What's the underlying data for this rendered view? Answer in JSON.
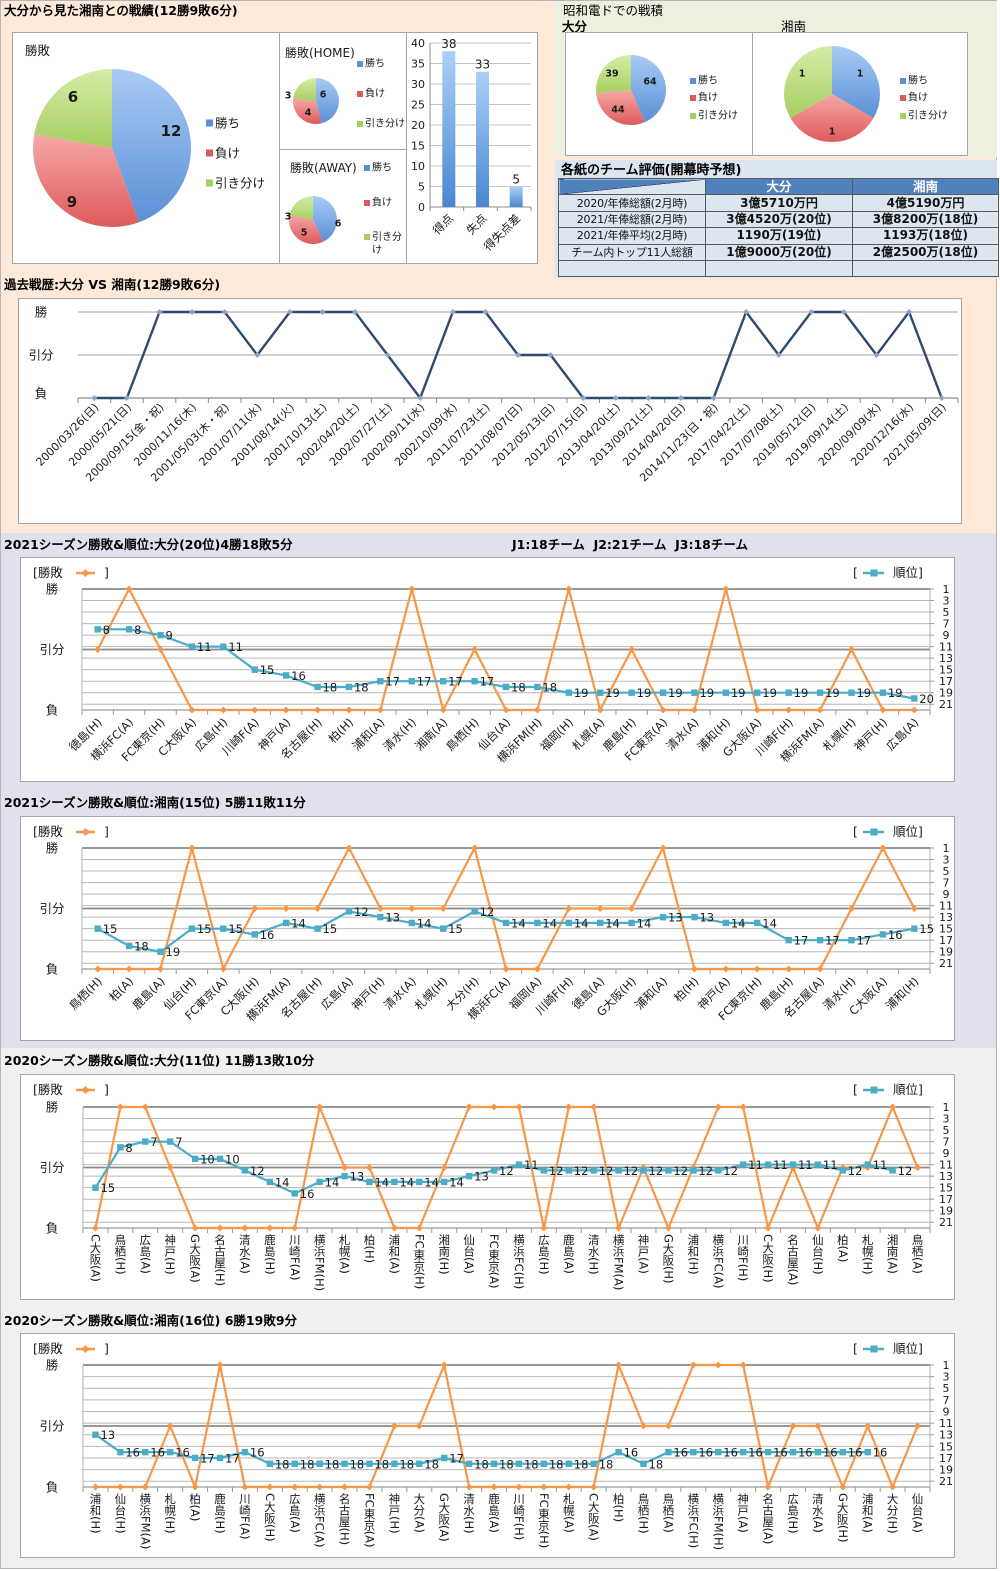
{
  "head_to_head": {
    "title": "大分から見た湘南との戦績(12勝9敗6分)"
  },
  "venue": {
    "title": "昭和電ドでの戦積"
  },
  "evaluation": {
    "title": "各紙のチーム評価(開幕時予想)",
    "header": [
      "",
      "大分",
      "湘南"
    ],
    "rows": [
      [
        "2020/年俸総額(2月時)",
        "3億5710万円",
        "4億5190万円"
      ],
      [
        "2021/年俸総額(2月時)",
        "3億4520万(20位)",
        "3億8200万(18位)"
      ],
      [
        "2021/年俸平均(2月時)",
        "1190万(19位)",
        "1193万(18位)"
      ],
      [
        "チーム内トップ11人総額",
        "1億9000万(20位)",
        "2億2500万(18位)"
      ],
      [
        "",
        "",
        ""
      ]
    ]
  },
  "league_note": "J1:18チーム  J2:21チーム  J3:18チーム",
  "colors": {
    "win": "#5b8fd6",
    "win_light": "#a9cbf5",
    "loss": "#de5a5a",
    "loss_light": "#f6a8a7",
    "draw": "#a6cf62",
    "draw_light": "#d6eca6",
    "bar": "#4a86d2",
    "bar_light": "#acd0f6",
    "history_line": "#2e4a6e",
    "history_marker": "#8fa4c2",
    "result_line": "#f79646",
    "rank_line": "#4bacc6"
  },
  "chart_data": [
    {
      "type": "pie",
      "title": "勝敗",
      "categories": [
        "勝ち",
        "負け",
        "引き分け"
      ],
      "values": [
        12,
        9,
        6
      ]
    },
    {
      "type": "pie",
      "title": "勝敗(HOME)",
      "categories": [
        "勝ち",
        "負け",
        "引き分け"
      ],
      "values": [
        6,
        4,
        3
      ]
    },
    {
      "type": "pie",
      "title": "勝敗(AWAY)",
      "categories": [
        "勝ち",
        "負け",
        "引き分け"
      ],
      "values": [
        6,
        5,
        3
      ]
    },
    {
      "type": "bar",
      "title": "",
      "categories": [
        "得点",
        "失点",
        "得失点差"
      ],
      "values": [
        38,
        33,
        5
      ],
      "ylim": [
        0,
        40
      ],
      "yticks": [
        0,
        5,
        10,
        15,
        20,
        25,
        30,
        35,
        40
      ],
      "grid": true,
      "data_labels": true
    },
    {
      "type": "pie",
      "title": "大分",
      "categories": [
        "勝ち",
        "負け",
        "引き分け"
      ],
      "values": [
        64,
        44,
        39
      ]
    },
    {
      "type": "pie",
      "title": "湘南",
      "categories": [
        "勝ち",
        "負け",
        "引き分け"
      ],
      "values": [
        1,
        1,
        1
      ]
    },
    {
      "type": "line",
      "title": "過去戦歴:大分 VS 湘南(12勝9敗6分)",
      "categories": [
        "2000/03/26(日)",
        "2000/05/21(日)",
        "2000/09/15(金・祝)",
        "2000/11/16(木)",
        "2001/05/03(木・祝)",
        "2001/07/11(水)",
        "2001/08/14(火)",
        "2001/10/13(土)",
        "2002/04/20(土)",
        "2002/07/27(土)",
        "2002/09/11(水)",
        "2002/10/09(水)",
        "2011/07/23(土)",
        "2011/08/07(日)",
        "2012/05/13(日)",
        "2012/07/15(日)",
        "2013/04/20(土)",
        "2013/09/21(土)",
        "2014/04/20(日)",
        "2014/11/23(日・祝)",
        "2017/04/22(土)",
        "2017/07/08(土)",
        "2019/05/12(日)",
        "2019/09/14(土)",
        "2020/09/09(水)",
        "2020/12/16(水)",
        "2021/05/09(日)"
      ],
      "y_ticks": [
        "勝",
        "引分",
        "負"
      ],
      "values": [
        "負",
        "負",
        "勝",
        "勝",
        "勝",
        "引分",
        "勝",
        "勝",
        "勝",
        "引分",
        "負",
        "勝",
        "勝",
        "引分",
        "引分",
        "負",
        "負",
        "負",
        "負",
        "負",
        "勝",
        "引分",
        "勝",
        "勝",
        "引分",
        "勝",
        "負"
      ]
    },
    {
      "type": "line",
      "title": "2021シーズン勝敗&順位:大分(20位)4勝18敗5分",
      "categories": [
        "徳島(H)",
        "横浜FC(A)",
        "FC東京(H)",
        "C大阪(A)",
        "広島(H)",
        "川崎F(A)",
        "神戸(A)",
        "名古屋(H)",
        "柏(H)",
        "浦和(A)",
        "清水(H)",
        "湘南(A)",
        "鳥栖(H)",
        "仙台(A)",
        "横浜FM(H)",
        "福岡(H)",
        "札幌(A)",
        "鹿島(H)",
        "FC東京(A)",
        "清水(A)",
        "浦和(H)",
        "G大阪(A)",
        "川崎F(H)",
        "横浜FM(A)",
        "札幌(H)",
        "神戸(H)",
        "広島(A)"
      ],
      "series": [
        {
          "name": "勝敗",
          "axis": "left",
          "values": [
            "引分",
            "勝",
            "引分",
            "負",
            "負",
            "負",
            "負",
            "負",
            "負",
            "負",
            "勝",
            "負",
            "引分",
            "負",
            "負",
            "勝",
            "負",
            "引分",
            "負",
            "負",
            "勝",
            "負",
            "負",
            "負",
            "引分",
            "負",
            "負"
          ]
        },
        {
          "name": "順位",
          "axis": "right",
          "data_labels": true,
          "values": [
            8,
            8,
            9,
            11,
            11,
            15,
            16,
            18,
            18,
            17,
            17,
            17,
            17,
            18,
            18,
            19,
            19,
            19,
            19,
            19,
            19,
            19,
            19,
            19,
            19,
            19,
            20
          ]
        }
      ],
      "legend": {
        "left": [
          "[勝敗",
          "]"
        ],
        "right": [
          "[",
          "順位]"
        ]
      },
      "y_left_ticks": [
        "勝",
        "引分",
        "負"
      ],
      "y_right_ticks": [
        1,
        3,
        5,
        7,
        9,
        11,
        13,
        15,
        17,
        19,
        21
      ],
      "y_right_range": [
        1,
        22
      ]
    },
    {
      "type": "line",
      "title": "2021シーズン勝敗&順位:湘南(15位) 5勝11敗11分",
      "categories": [
        "鳥栖(H)",
        "柏(A)",
        "鹿島(A)",
        "仙台(H)",
        "FC東京(A)",
        "C大阪(H)",
        "横浜FM(A)",
        "名古屋(H)",
        "広島(A)",
        "神戸(H)",
        "清水(A)",
        "札幌(H)",
        "大分(H)",
        "横浜FC(A)",
        "福岡(A)",
        "川崎F(H)",
        "徳島(A)",
        "G大阪(H)",
        "浦和(A)",
        "柏(H)",
        "神戸(A)",
        "FC東京(H)",
        "鹿島(H)",
        "名古屋(A)",
        "清水(H)",
        "C大阪(A)",
        "浦和(H)"
      ],
      "series": [
        {
          "name": "勝敗",
          "axis": "left",
          "values": [
            "負",
            "負",
            "負",
            "勝",
            "負",
            "引分",
            "引分",
            "引分",
            "勝",
            "引分",
            "引分",
            "引分",
            "勝",
            "負",
            "負",
            "引分",
            "引分",
            "引分",
            "勝",
            "負",
            "負",
            "負",
            "負",
            "負",
            "引分",
            "勝",
            "引分"
          ]
        },
        {
          "name": "順位",
          "axis": "right",
          "data_labels": true,
          "values": [
            15,
            18,
            19,
            15,
            15,
            16,
            14,
            15,
            12,
            13,
            14,
            15,
            12,
            14,
            14,
            14,
            14,
            14,
            13,
            13,
            14,
            14,
            17,
            17,
            17,
            16,
            15
          ]
        }
      ],
      "legend": {
        "left": [
          "[勝敗",
          "]"
        ],
        "right": [
          "[",
          "順位]"
        ]
      },
      "y_left_ticks": [
        "勝",
        "引分",
        "負"
      ],
      "y_right_ticks": [
        1,
        3,
        5,
        7,
        9,
        11,
        13,
        15,
        17,
        19,
        21
      ],
      "y_right_range": [
        1,
        22
      ]
    },
    {
      "type": "line",
      "title": "2020シーズン勝敗&順位:大分(11位) 11勝13敗10分",
      "categories": [
        "C大阪(A)",
        "鳥栖(H)",
        "広島(A)",
        "神戸(H)",
        "G大阪(A)",
        "名古屋(H)",
        "清水(A)",
        "鹿島(H)",
        "川崎F(A)",
        "横浜FM(H)",
        "札幌(A)",
        "柏(H)",
        "浦和(A)",
        "FC東京(H)",
        "湘南(H)",
        "仙台(A)",
        "FC東京(A)",
        "横浜FC(H)",
        "広島(H)",
        "鹿島(A)",
        "清水(H)",
        "横浜FM(A)",
        "神戸(A)",
        "G大阪(H)",
        "浦和(H)",
        "横浜FC(A)",
        "川崎F(H)",
        "C大阪(H)",
        "名古屋(A)",
        "仙台(H)",
        "柏(A)",
        "札幌(H)",
        "湘南(A)",
        "鳥栖(A)"
      ],
      "series": [
        {
          "name": "勝敗",
          "axis": "left",
          "values": [
            "負",
            "勝",
            "勝",
            "引分",
            "負",
            "負",
            "負",
            "負",
            "負",
            "勝",
            "引分",
            "引分",
            "負",
            "負",
            "引分",
            "勝",
            "勝",
            "勝",
            "負",
            "勝",
            "勝",
            "負",
            "引分",
            "負",
            "引分",
            "勝",
            "勝",
            "負",
            "引分",
            "負",
            "引分",
            "引分",
            "勝",
            "引分"
          ]
        },
        {
          "name": "順位",
          "axis": "right",
          "data_labels": true,
          "values": [
            15,
            8,
            7,
            7,
            10,
            10,
            12,
            14,
            16,
            14,
            13,
            14,
            14,
            14,
            14,
            13,
            12,
            11,
            12,
            12,
            12,
            12,
            12,
            12,
            12,
            12,
            11,
            11,
            11,
            11,
            12,
            11,
            12,
            null
          ]
        }
      ],
      "legend": {
        "left": [
          "[勝敗",
          "]"
        ],
        "right": [
          "[",
          "順位]"
        ]
      },
      "y_left_ticks": [
        "勝",
        "引分",
        "負"
      ],
      "y_right_ticks": [
        1,
        3,
        5,
        7,
        9,
        11,
        13,
        15,
        17,
        19,
        21
      ],
      "y_right_range": [
        1,
        22
      ]
    },
    {
      "type": "line",
      "title": "2020シーズン勝敗&順位:湘南(16位) 6勝19敗9分",
      "categories": [
        "浦和(H)",
        "仙台(H)",
        "横浜FM(A)",
        "札幌(H)",
        "柏(A)",
        "鹿島(H)",
        "川崎F(A)",
        "C大阪(H)",
        "広島(A)",
        "横浜FC(A)",
        "名古屋(H)",
        "FC東京(A)",
        "神戸(H)",
        "大分(A)",
        "G大阪(A)",
        "清水(H)",
        "鹿島(A)",
        "川崎F(H)",
        "FC東京(H)",
        "札幌(A)",
        "C大阪(A)",
        "柏(H)",
        "鳥栖(H)",
        "鳥栖(A)",
        "横浜FC(H)",
        "横浜FM(H)",
        "神戸(A)",
        "名古屋(A)",
        "広島(H)",
        "清水(A)",
        "G大阪(H)",
        "浦和(A)",
        "大分(H)",
        "仙台(A)"
      ],
      "series": [
        {
          "name": "勝敗",
          "axis": "left",
          "values": [
            "負",
            "負",
            "負",
            "引分",
            "負",
            "勝",
            "負",
            "負",
            "負",
            "負",
            "負",
            "負",
            "引分",
            "引分",
            "勝",
            "負",
            "負",
            "負",
            "負",
            "負",
            "負",
            "勝",
            "引分",
            "引分",
            "勝",
            "勝",
            "勝",
            "負",
            "引分",
            "引分",
            "負",
            "引分",
            "負",
            "引分"
          ]
        },
        {
          "name": "順位",
          "axis": "right",
          "data_labels": true,
          "values": [
            13,
            16,
            16,
            16,
            17,
            17,
            16,
            18,
            18,
            18,
            18,
            18,
            18,
            18,
            17,
            18,
            18,
            18,
            18,
            18,
            18,
            16,
            18,
            16,
            16,
            16,
            16,
            16,
            16,
            16,
            16,
            16,
            null,
            null
          ]
        }
      ],
      "legend": {
        "left": [
          "[勝敗",
          "]"
        ],
        "right": [
          "[",
          "順位]"
        ]
      },
      "y_left_ticks": [
        "勝",
        "引分",
        "負"
      ],
      "y_right_ticks": [
        1,
        3,
        5,
        7,
        9,
        11,
        13,
        15,
        17,
        19,
        21
      ],
      "y_right_range": [
        1,
        22
      ]
    }
  ]
}
